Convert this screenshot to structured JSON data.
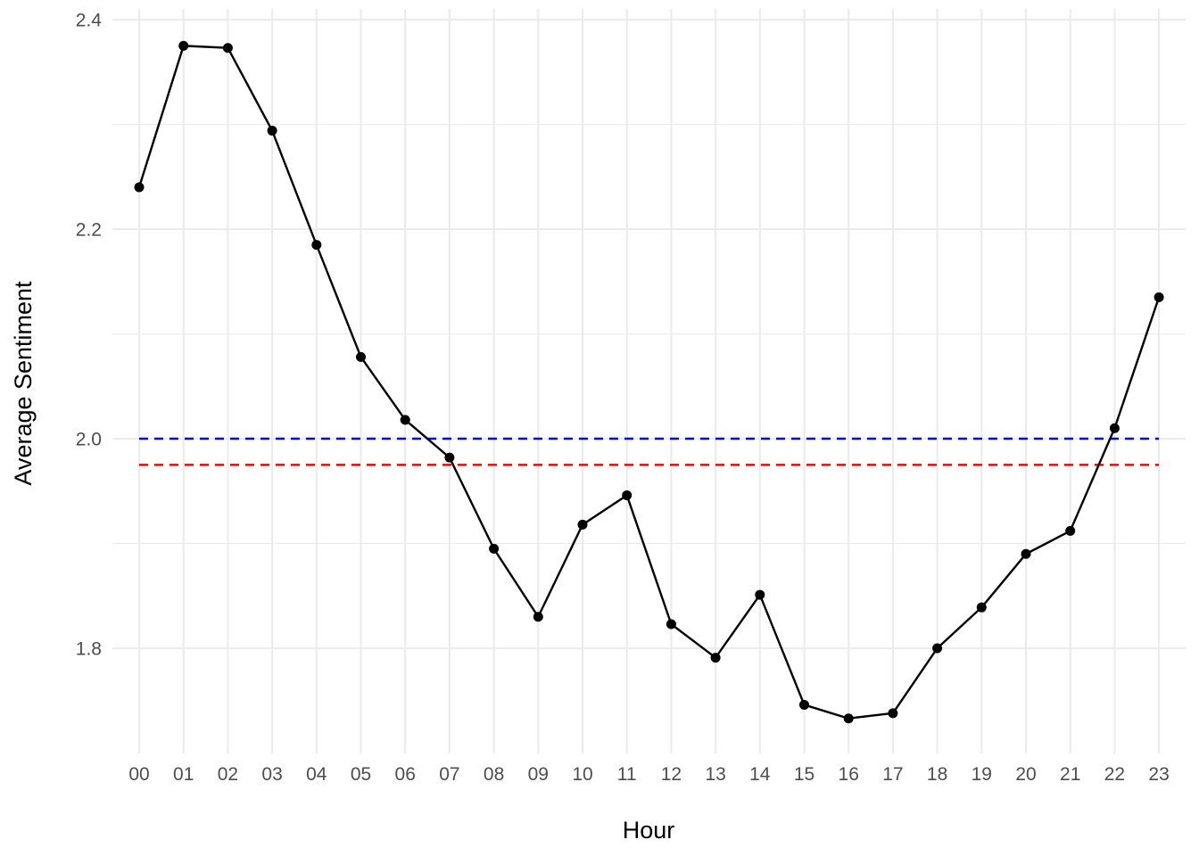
{
  "chart_data": {
    "type": "line",
    "xlabel": "Hour",
    "ylabel": "Average Sentiment",
    "categories": [
      "00",
      "01",
      "02",
      "03",
      "04",
      "05",
      "06",
      "07",
      "08",
      "09",
      "10",
      "11",
      "12",
      "13",
      "14",
      "15",
      "16",
      "17",
      "18",
      "19",
      "20",
      "21",
      "22",
      "23"
    ],
    "series": [
      {
        "values": [
          2.24,
          2.375,
          2.373,
          2.294,
          2.185,
          2.078,
          2.018,
          1.982,
          1.895,
          1.83,
          1.918,
          1.946,
          1.823,
          1.791,
          1.851,
          1.746,
          1.733,
          1.738,
          1.8,
          1.839,
          1.89,
          1.912,
          2.01,
          2.135
        ],
        "color": "#000000",
        "markers": true
      }
    ],
    "reference_lines": [
      {
        "y": 2.0,
        "color": "#0000ff",
        "style": "dashed"
      },
      {
        "y": 1.975,
        "color": "#ff0000",
        "style": "dashed"
      }
    ],
    "ylim": [
      1.7,
      2.4
    ],
    "yticks": [
      1.8,
      2.0,
      2.2,
      2.4
    ],
    "ytick_labels": [
      "1.8",
      "2.0",
      "2.2",
      "2.4"
    ],
    "grid": true,
    "legend": "none"
  }
}
